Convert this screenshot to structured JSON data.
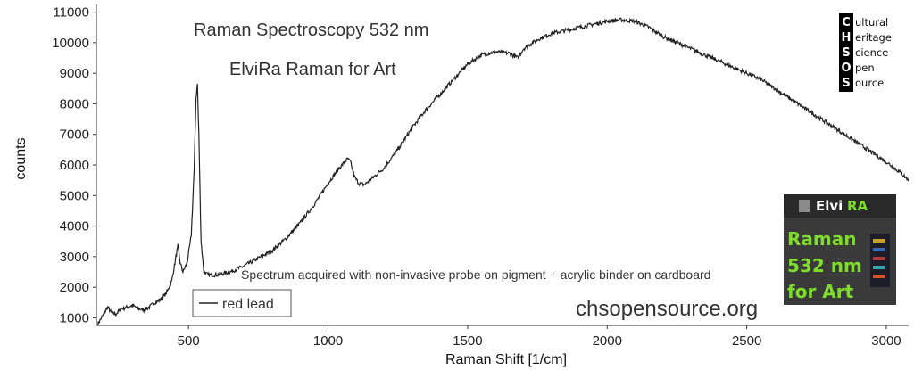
{
  "chart_data": {
    "type": "line",
    "title": "Raman Spectroscopy 532 nm",
    "subtitle": "ElviRa Raman for Art",
    "xlabel": "Raman Shift [1/cm]",
    "ylabel": "counts",
    "xlim": [
      170,
      3080
    ],
    "ylim": [
      750,
      11250
    ],
    "x_ticks": [
      500,
      1000,
      1500,
      2000,
      2500,
      3000
    ],
    "y_ticks": [
      1000,
      2000,
      3000,
      4000,
      5000,
      6000,
      7000,
      8000,
      9000,
      10000,
      11000
    ],
    "grid": false,
    "legend_position": "bottom-left",
    "annotation": "Spectrum acquired with non-invasive probe on pigment + acrylic binder on cardboard",
    "website": "chsopensource.org",
    "series": [
      {
        "name": "red lead",
        "color": "#222222",
        "x": [
          175,
          195,
          210,
          225,
          240,
          260,
          280,
          300,
          320,
          340,
          360,
          380,
          400,
          420,
          440,
          455,
          462,
          470,
          480,
          495,
          510,
          520,
          527,
          532,
          537,
          545,
          555,
          570,
          600,
          650,
          700,
          750,
          800,
          850,
          900,
          950,
          1000,
          1040,
          1070,
          1080,
          1095,
          1110,
          1130,
          1150,
          1200,
          1250,
          1300,
          1350,
          1400,
          1450,
          1500,
          1550,
          1600,
          1650,
          1680,
          1700,
          1750,
          1800,
          1850,
          1900,
          1950,
          2000,
          2050,
          2100,
          2150,
          2200,
          2250,
          2300,
          2350,
          2400,
          2450,
          2500,
          2550,
          2600,
          2650,
          2700,
          2750,
          2800,
          2850,
          2900,
          2950,
          3000,
          3050,
          3080
        ],
        "y": [
          800,
          1100,
          1350,
          1150,
          1120,
          1300,
          1350,
          1400,
          1300,
          1250,
          1350,
          1500,
          1600,
          1800,
          2200,
          3000,
          3350,
          2800,
          2500,
          2800,
          3700,
          5800,
          8200,
          8650,
          7000,
          3500,
          2500,
          2400,
          2400,
          2500,
          2700,
          2950,
          3200,
          3600,
          4100,
          4700,
          5400,
          5900,
          6200,
          6100,
          5600,
          5400,
          5350,
          5500,
          5900,
          6500,
          7200,
          7800,
          8300,
          8800,
          9300,
          9600,
          9700,
          9650,
          9500,
          9800,
          10100,
          10300,
          10400,
          10500,
          10600,
          10700,
          10750,
          10700,
          10500,
          10200,
          10000,
          9800,
          9600,
          9400,
          9200,
          9000,
          8800,
          8500,
          8200,
          7900,
          7600,
          7300,
          7000,
          6700,
          6400,
          6100,
          5750,
          5500
        ]
      }
    ]
  },
  "logo": {
    "letters": [
      "C",
      "H",
      "S",
      "O",
      "S"
    ],
    "words": [
      "ultural",
      "eritage",
      "cience",
      "pen",
      "ource"
    ]
  },
  "thumbnail": {
    "brand_a": "Elvi",
    "brand_b": "RA",
    "lines": [
      "Raman",
      "532 nm",
      "for Art"
    ],
    "colors": {
      "green": "#7ddc2c",
      "bg": "#3a3a3a"
    }
  }
}
